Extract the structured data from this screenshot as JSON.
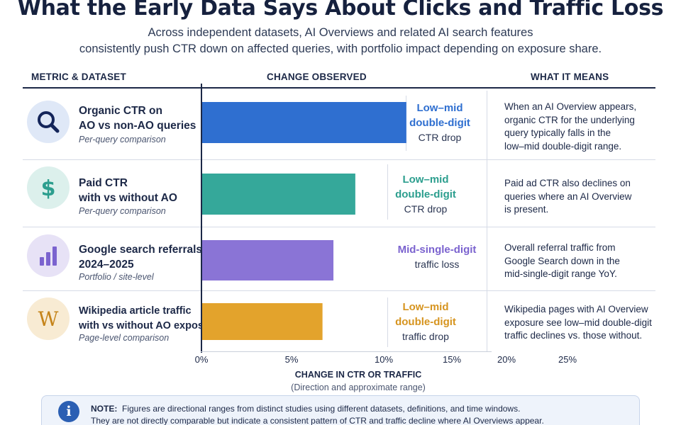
{
  "title": "What the Early Data Says About Clicks and Traffic Loss",
  "subtitle_lines": [
    "Across independent datasets, AI Overviews and related AI search features",
    "consistently push CTR down on affected queries, with portfolio impact depending on exposure share."
  ],
  "columns": {
    "metric": "METRIC & DATASET",
    "change": "CHANGE OBSERVED",
    "means": "WHAT IT MEANS"
  },
  "colors": {
    "organic": "#2f6fd0",
    "paid": "#35a89a",
    "referrals": "#8a74d6",
    "wikipedia": "#e3a32c"
  },
  "rows": [
    {
      "icon": "magnifier-icon",
      "name_lines": [
        "Organic CTR on",
        "AO vs non-AO queries"
      ],
      "desc": "Per-query comparison",
      "label_strong": [
        "Low–mid",
        "double-digit"
      ],
      "label_plain": "CTR drop",
      "means_lines": [
        "When an AI Overview appears,",
        "organic CTR for the underlying",
        "query typically falls in the",
        "low–mid double-digit range."
      ]
    },
    {
      "icon": "dollar-icon",
      "name_lines": [
        "Paid CTR",
        "with vs without AO"
      ],
      "desc": "Per-query comparison",
      "label_strong": [
        "Low–mid",
        "double-digit"
      ],
      "label_plain": "CTR drop",
      "means_lines": [
        "Paid ad CTR also declines on",
        "queries where an AI Overview",
        "is present."
      ]
    },
    {
      "icon": "bar-chart-icon",
      "name_lines": [
        "Google search referrals",
        "2024–2025"
      ],
      "desc": "Portfolio / site-level",
      "label_strong": [
        "Mid-single-digit"
      ],
      "label_plain": "traffic loss",
      "means_lines": [
        "Overall referral traffic from",
        "Google Search down in the",
        "mid-single-digit range YoY."
      ]
    },
    {
      "icon": "wikipedia-icon",
      "icon_glyph": "W",
      "name_lines": [
        "Wikipedia article traffic",
        "with vs without AO exposure"
      ],
      "desc": "Page-level comparison",
      "label_strong": [
        "Low–mid",
        "double-digit"
      ],
      "label_plain": "traffic drop",
      "means_lines": [
        "Wikipedia pages with AI Overview",
        "exposure see low–mid double-digit",
        "traffic declines vs. those without."
      ]
    }
  ],
  "chart_data": {
    "type": "bar",
    "orientation": "horizontal",
    "categories": [
      "Organic CTR on AO vs non-AO queries",
      "Paid CTR with vs without AO",
      "Google search referrals 2024–2025",
      "Wikipedia article traffic with vs without AO exposure"
    ],
    "values": [
      11.2,
      8.4,
      7.2,
      6.6
    ],
    "x_ticks": [
      "0%",
      "5%",
      "10%",
      "15%",
      "20%",
      "25%"
    ],
    "xlabel": "CHANGE IN CTR OR TRAFFIC",
    "xlabel_sub": "(Direction and approximate range)",
    "grid": false,
    "legend": "none"
  },
  "note": {
    "label": "NOTE:",
    "line1": "Figures are directional ranges from distinct studies using different datasets, definitions, and time windows.",
    "line2": "They are not directly comparable but indicate a consistent pattern of CTR and traffic decline where AI Overviews appear."
  }
}
